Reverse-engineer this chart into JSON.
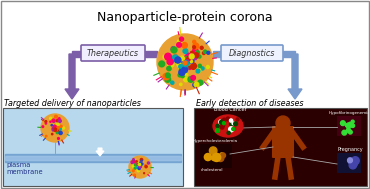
{
  "title": "Nanoparticle-protein corona",
  "title_fontsize": 9,
  "bg_color": "#ffffff",
  "border_color": "#888888",
  "left_label": "Targeted delivery of nanoparticles",
  "right_label": "Early detection of diseases",
  "therapeutics_label": "Therapeutics",
  "diagnostics_label": "Diagnostics",
  "therapeutics_box_color": "#7b5ea7",
  "diagnostics_box_color": "#6688bb",
  "left_box_bg": "#b8d8ee",
  "plasma_membrane_label": "plasma\nmembrane",
  "arrow_left_color": "#7b5ea7",
  "arrow_right_color": "#7799cc",
  "np_colors": [
    "#cc2200",
    "#2244cc",
    "#22aa22",
    "#dddd00",
    "#aa22aa",
    "#00aaaa",
    "#ff6600",
    "#ff0066"
  ],
  "right_panel_bg": "#2a0000",
  "right_panel_mid": "#8b2200"
}
